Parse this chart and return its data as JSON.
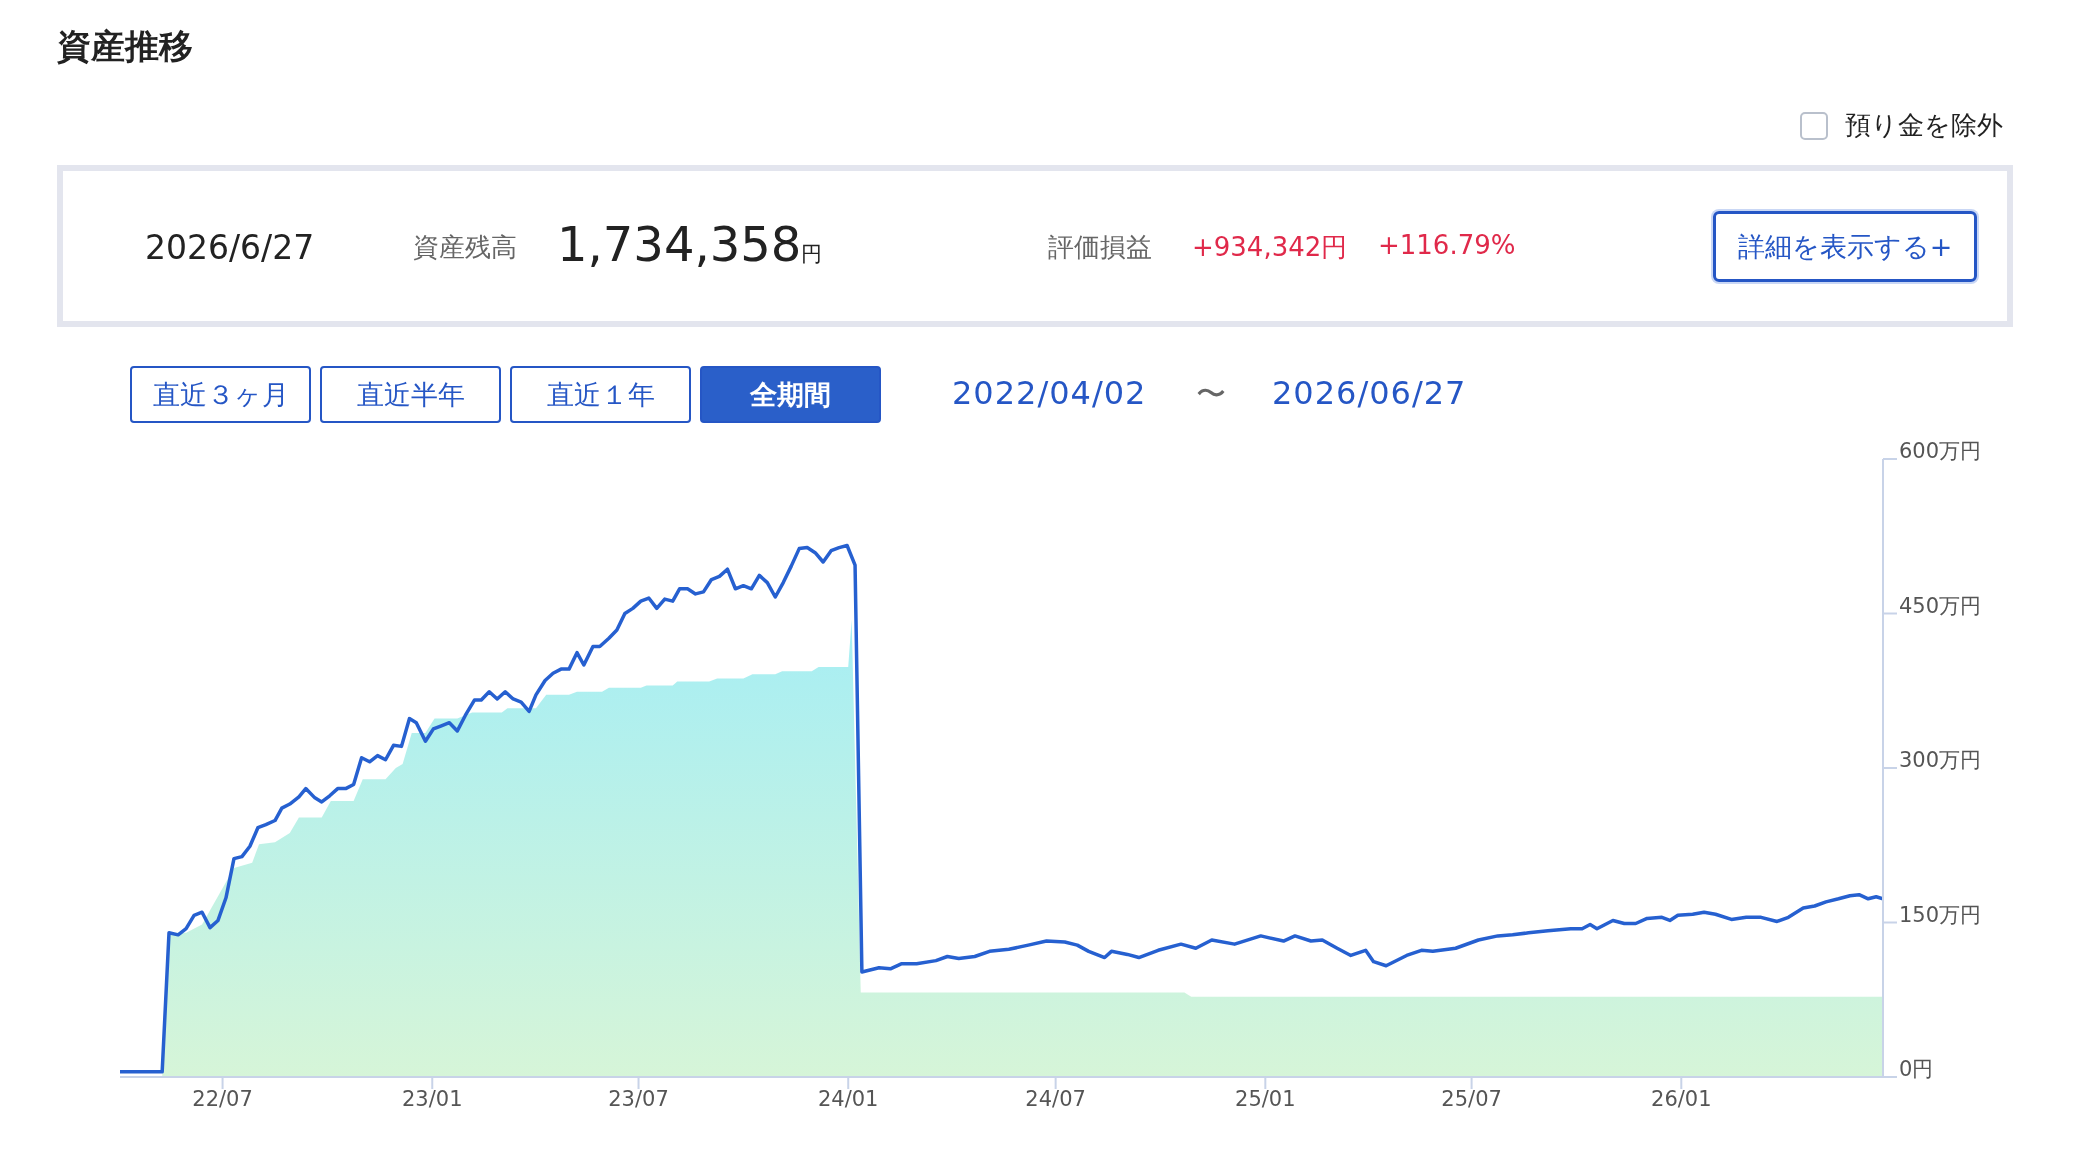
{
  "chart_data": {
    "type": "line",
    "title": "資産推移",
    "annotations": [
      "預り金を除外",
      "2026/6/27",
      "資産残高",
      "1,734,358",
      "円",
      "評価損益",
      "+934,342円",
      "+116.79%",
      "詳細を表示する+",
      "直近３ヶ月",
      "直近半年",
      "直近１年",
      "全期間",
      "2022/04/02",
      "〜",
      "2026/06/27"
    ],
    "xlim": [
      "2022-04-02",
      "2026-06-27"
    ],
    "xticks": [
      {
        "value": "2022-07-01",
        "label": "22/07"
      },
      {
        "value": "2023-01-01",
        "label": "23/01"
      },
      {
        "value": "2023-07-01",
        "label": "23/07"
      },
      {
        "value": "2024-01-01",
        "label": "24/01"
      },
      {
        "value": "2024-07-01",
        "label": "24/07"
      },
      {
        "value": "2025-01-01",
        "label": "25/01"
      },
      {
        "value": "2025-07-01",
        "label": "25/07"
      },
      {
        "value": "2026-01-01",
        "label": "26/01"
      }
    ],
    "ylim": [
      0,
      600
    ],
    "yticks": [
      {
        "value": 0,
        "label": "0円"
      },
      {
        "value": 150,
        "label": "150万円"
      },
      {
        "value": 300,
        "label": "300万円"
      },
      {
        "value": 450,
        "label": "450万円"
      },
      {
        "value": 600,
        "label": "600万円"
      }
    ],
    "grid": false,
    "legend": false,
    "marker": "none",
    "series": [
      {
        "type": "area",
        "color": "#a6eef4",
        "x": [
          "2022-04-02",
          "2022-05-09",
          "2022-05-15",
          "2022-05-30",
          "2022-06-13",
          "2022-07-11",
          "2022-07-27",
          "2022-08-02",
          "2022-08-16",
          "2022-08-29",
          "2022-09-06",
          "2022-09-26",
          "2022-10-04",
          "2022-10-24",
          "2022-11-01",
          "2022-11-21",
          "2022-11-30",
          "2022-12-06",
          "2022-12-14",
          "2022-12-26",
          "2023-01-03",
          "2023-01-23",
          "2023-02-05",
          "2023-03-03",
          "2023-03-08",
          "2023-04-02",
          "2023-04-11",
          "2023-05-01",
          "2023-05-08",
          "2023-05-30",
          "2023-06-05",
          "2023-07-03",
          "2023-07-08",
          "2023-07-31",
          "2023-08-04",
          "2023-09-01",
          "2023-09-08",
          "2023-10-01",
          "2023-10-09",
          "2023-10-29",
          "2023-11-04",
          "2023-11-30",
          "2023-12-06",
          "2024-01-01",
          "2024-01-04",
          "2024-01-12",
          "2024-10-22",
          "2024-10-28",
          "2026-06-27"
        ],
        "values": [
          0,
          0,
          140,
          140,
          148,
          203,
          208,
          226,
          228,
          237,
          252,
          252,
          268,
          268,
          289,
          289,
          300,
          304,
          334,
          334,
          348,
          348,
          354,
          354,
          358,
          358,
          371,
          371,
          374,
          374,
          378,
          378,
          380,
          380,
          384,
          384,
          387,
          387,
          391,
          391,
          394,
          394,
          398,
          398,
          444,
          82,
          82,
          78,
          78
        ]
      },
      {
        "color": "#2660d0",
        "x": [
          "2022-04-02",
          "2022-05-09",
          "2022-05-15",
          "2022-05-23",
          "2022-05-30",
          "2022-06-06",
          "2022-06-13",
          "2022-06-20",
          "2022-06-27",
          "2022-07-04",
          "2022-07-11",
          "2022-07-18",
          "2022-07-25",
          "2022-08-01",
          "2022-08-08",
          "2022-08-16",
          "2022-08-22",
          "2022-08-29",
          "2022-09-06",
          "2022-09-12",
          "2022-09-20",
          "2022-09-26",
          "2022-10-03",
          "2022-10-10",
          "2022-10-17",
          "2022-10-24",
          "2022-10-31",
          "2022-11-07",
          "2022-11-14",
          "2022-11-21",
          "2022-11-28",
          "2022-12-05",
          "2022-12-12",
          "2022-12-18",
          "2022-12-26",
          "2023-01-02",
          "2023-01-09",
          "2023-01-16",
          "2023-01-23",
          "2023-01-30",
          "2023-02-07",
          "2023-02-13",
          "2023-02-20",
          "2023-02-27",
          "2023-03-06",
          "2023-03-13",
          "2023-03-20",
          "2023-03-27",
          "2023-04-02",
          "2023-04-10",
          "2023-04-17",
          "2023-04-24",
          "2023-05-01",
          "2023-05-08",
          "2023-05-14",
          "2023-05-22",
          "2023-05-28",
          "2023-06-05",
          "2023-06-12",
          "2023-06-19",
          "2023-06-26",
          "2023-07-03",
          "2023-07-10",
          "2023-07-17",
          "2023-07-24",
          "2023-07-31",
          "2023-08-06",
          "2023-08-13",
          "2023-08-20",
          "2023-08-27",
          "2023-09-03",
          "2023-09-10",
          "2023-09-17",
          "2023-09-24",
          "2023-10-01",
          "2023-10-08",
          "2023-10-15",
          "2023-10-22",
          "2023-10-29",
          "2023-11-05",
          "2023-11-12",
          "2023-11-19",
          "2023-11-26",
          "2023-12-03",
          "2023-12-10",
          "2023-12-17",
          "2023-12-24",
          "2023-12-31",
          "2024-01-07",
          "2024-01-13",
          "2024-01-28",
          "2024-02-07",
          "2024-02-17",
          "2024-03-01",
          "2024-03-18",
          "2024-03-28",
          "2024-04-07",
          "2024-04-21",
          "2024-05-04",
          "2024-05-21",
          "2024-06-07",
          "2024-06-23",
          "2024-07-09",
          "2024-07-20",
          "2024-07-30",
          "2024-08-13",
          "2024-08-19",
          "2024-09-02",
          "2024-09-12",
          "2024-09-29",
          "2024-10-19",
          "2024-11-01",
          "2024-11-15",
          "2024-12-05",
          "2024-12-28",
          "2025-01-17",
          "2025-01-27",
          "2025-02-10",
          "2025-02-20",
          "2025-03-05",
          "2025-03-17",
          "2025-03-30",
          "2025-04-06",
          "2025-04-17",
          "2025-05-05",
          "2025-05-18",
          "2025-05-28",
          "2025-06-17",
          "2025-07-07",
          "2025-07-24",
          "2025-08-06",
          "2025-08-20",
          "2025-09-06",
          "2025-09-26",
          "2025-10-06",
          "2025-10-13",
          "2025-10-19",
          "2025-11-02",
          "2025-11-12",
          "2025-11-22",
          "2025-12-02",
          "2025-12-15",
          "2025-12-22",
          "2025-12-29",
          "2026-01-11",
          "2026-01-21",
          "2026-01-31",
          "2026-02-14",
          "2026-02-27",
          "2026-03-12",
          "2026-03-26",
          "2026-04-05",
          "2026-04-18",
          "2026-04-28",
          "2026-05-08",
          "2026-05-19",
          "2026-05-29",
          "2026-06-06",
          "2026-06-14",
          "2026-06-21",
          "2026-06-27"
        ],
        "values": [
          5,
          5,
          140,
          138,
          144,
          157,
          160,
          145,
          152,
          174,
          212,
          214,
          224,
          242,
          245,
          249,
          261,
          265,
          272,
          280,
          271,
          267,
          273,
          280,
          280,
          284,
          310,
          306,
          312,
          308,
          322,
          321,
          348,
          344,
          326,
          338,
          341,
          344,
          336,
          351,
          366,
          366,
          374,
          367,
          374,
          367,
          364,
          355,
          371,
          385,
          392,
          396,
          396,
          412,
          400,
          418,
          418,
          426,
          434,
          450,
          455,
          462,
          465,
          455,
          464,
          462,
          474,
          474,
          469,
          471,
          483,
          486,
          493,
          474,
          477,
          474,
          487,
          480,
          466,
          480,
          496,
          513,
          514,
          509,
          500,
          511,
          514,
          516,
          497,
          102,
          106,
          105,
          110,
          110,
          113,
          117,
          115,
          117,
          122,
          124,
          128,
          132,
          131,
          128,
          122,
          116,
          122,
          119,
          116,
          123,
          129,
          125,
          133,
          129,
          137,
          132,
          137,
          132,
          133,
          125,
          118,
          123,
          112,
          108,
          118,
          123,
          122,
          125,
          133,
          137,
          138,
          140,
          142,
          144,
          144,
          148,
          144,
          152,
          149,
          149,
          154,
          155,
          152,
          157,
          158,
          160,
          158,
          153,
          155,
          155,
          151,
          155,
          164,
          166,
          170,
          173,
          176,
          177,
          173,
          175,
          173
        ]
      }
    ]
  }
}
